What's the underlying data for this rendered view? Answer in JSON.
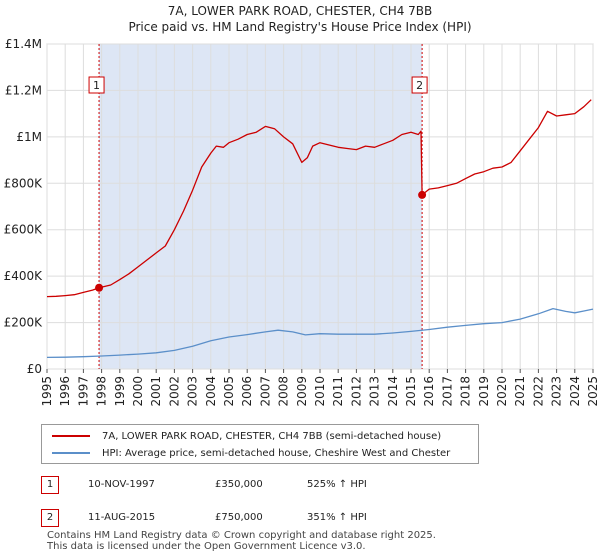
{
  "title_line1": "7A, LOWER PARK ROAD, CHESTER, CH4 7BB",
  "title_line2": "Price paid vs. HM Land Registry's House Price Index (HPI)",
  "colors": {
    "property": "#cc0000",
    "hpi": "#5b8fc9",
    "shade": "#dde6f5",
    "grid": "#dddddd"
  },
  "chart_data": {
    "type": "line",
    "title": "7A, LOWER PARK ROAD, CHESTER, CH4 7BB — Price paid vs. HM Land Registry's House Price Index (HPI)",
    "xlabel": "",
    "ylabel": "",
    "xlim": [
      1995.0,
      2025.0
    ],
    "ylim": [
      0,
      1400000
    ],
    "yticks": [
      {
        "value": 0,
        "label": "£0"
      },
      {
        "value": 200000,
        "label": "£200K"
      },
      {
        "value": 400000,
        "label": "£400K"
      },
      {
        "value": 600000,
        "label": "£600K"
      },
      {
        "value": 800000,
        "label": "£800K"
      },
      {
        "value": 1000000,
        "label": "£1M"
      },
      {
        "value": 1200000,
        "label": "£1.2M"
      },
      {
        "value": 1400000,
        "label": "£1.4M"
      }
    ],
    "xticks": [
      "1995",
      "1996",
      "1997",
      "1998",
      "1999",
      "2000",
      "2001",
      "2002",
      "2003",
      "2004",
      "2005",
      "2006",
      "2007",
      "2008",
      "2009",
      "2010",
      "2011",
      "2012",
      "2013",
      "2014",
      "2015",
      "2016",
      "2017",
      "2018",
      "2019",
      "2020",
      "2021",
      "2022",
      "2023",
      "2024",
      "2025"
    ],
    "shaded_ranges": [
      [
        1997.86,
        2015.61
      ],
      [
        2025.0,
        2025.3
      ]
    ],
    "series": [
      {
        "name": "7A, LOWER PARK ROAD, CHESTER, CH4 7BB (semi-detached house)",
        "x": [
          1995.0,
          1995.5,
          1996.0,
          1996.5,
          1997.0,
          1997.5,
          1997.86,
          1998.5,
          1999.0,
          1999.5,
          2000.0,
          2000.5,
          2001.0,
          2001.5,
          2002.0,
          2002.5,
          2003.0,
          2003.5,
          2004.0,
          2004.3,
          2004.7,
          2005.0,
          2005.5,
          2006.0,
          2006.5,
          2007.0,
          2007.5,
          2008.0,
          2008.5,
          2009.0,
          2009.3,
          2009.6,
          2010.0,
          2010.5,
          2011.0,
          2011.5,
          2012.0,
          2012.5,
          2013.0,
          2013.5,
          2014.0,
          2014.5,
          2015.0,
          2015.4,
          2015.55,
          2015.61,
          2016.0,
          2016.5,
          2017.0,
          2017.5,
          2018.0,
          2018.5,
          2019.0,
          2019.5,
          2020.0,
          2020.5,
          2021.0,
          2021.5,
          2022.0,
          2022.5,
          2023.0,
          2023.5,
          2024.0,
          2024.5,
          2024.9
        ],
        "values": [
          312000,
          313000,
          316000,
          320000,
          330000,
          340000,
          350000,
          362000,
          385000,
          410000,
          440000,
          470000,
          500000,
          530000,
          600000,
          680000,
          770000,
          870000,
          930000,
          960000,
          955000,
          975000,
          990000,
          1010000,
          1020000,
          1045000,
          1035000,
          1000000,
          970000,
          890000,
          910000,
          960000,
          975000,
          965000,
          955000,
          950000,
          945000,
          960000,
          955000,
          970000,
          985000,
          1010000,
          1020000,
          1010000,
          1025000,
          750000,
          775000,
          780000,
          790000,
          800000,
          820000,
          840000,
          850000,
          865000,
          870000,
          890000,
          940000,
          990000,
          1040000,
          1110000,
          1090000,
          1095000,
          1100000,
          1130000,
          1160000
        ]
      },
      {
        "name": "HPI: Average price, semi-detached house, Cheshire West and Chester",
        "x": [
          1995.0,
          1996.0,
          1997.0,
          1998.0,
          1999.0,
          2000.0,
          2001.0,
          2002.0,
          2003.0,
          2004.0,
          2005.0,
          2006.0,
          2007.0,
          2007.7,
          2008.5,
          2009.2,
          2010.0,
          2011.0,
          2012.0,
          2013.0,
          2014.0,
          2015.0,
          2016.0,
          2017.0,
          2018.0,
          2019.0,
          2020.0,
          2021.0,
          2022.0,
          2022.8,
          2023.5,
          2024.0,
          2024.5,
          2025.0
        ],
        "values": [
          50000,
          51000,
          53000,
          56000,
          60000,
          64000,
          70000,
          80000,
          98000,
          122000,
          138000,
          148000,
          160000,
          167000,
          160000,
          147000,
          152000,
          150000,
          150000,
          150000,
          155000,
          162000,
          170000,
          180000,
          188000,
          195000,
          200000,
          215000,
          238000,
          260000,
          248000,
          242000,
          250000,
          258000
        ]
      }
    ],
    "sales": [
      {
        "label": "1",
        "x": 1997.86,
        "value": 350000
      },
      {
        "label": "2",
        "x": 2015.61,
        "value": 750000
      }
    ]
  },
  "legend": {
    "property": "7A, LOWER PARK ROAD, CHESTER, CH4 7BB (semi-detached house)",
    "hpi": "HPI: Average price, semi-detached house, Cheshire West and Chester"
  },
  "transactions": [
    {
      "num": "1",
      "date": "10-NOV-1997",
      "price": "£350,000",
      "hpi": "525% ↑ HPI"
    },
    {
      "num": "2",
      "date": "11-AUG-2015",
      "price": "£750,000",
      "hpi": "351% ↑ HPI"
    }
  ],
  "footer": {
    "line1": "Contains HM Land Registry data © Crown copyright and database right 2025.",
    "line2": "This data is licensed under the Open Government Licence v3.0."
  }
}
